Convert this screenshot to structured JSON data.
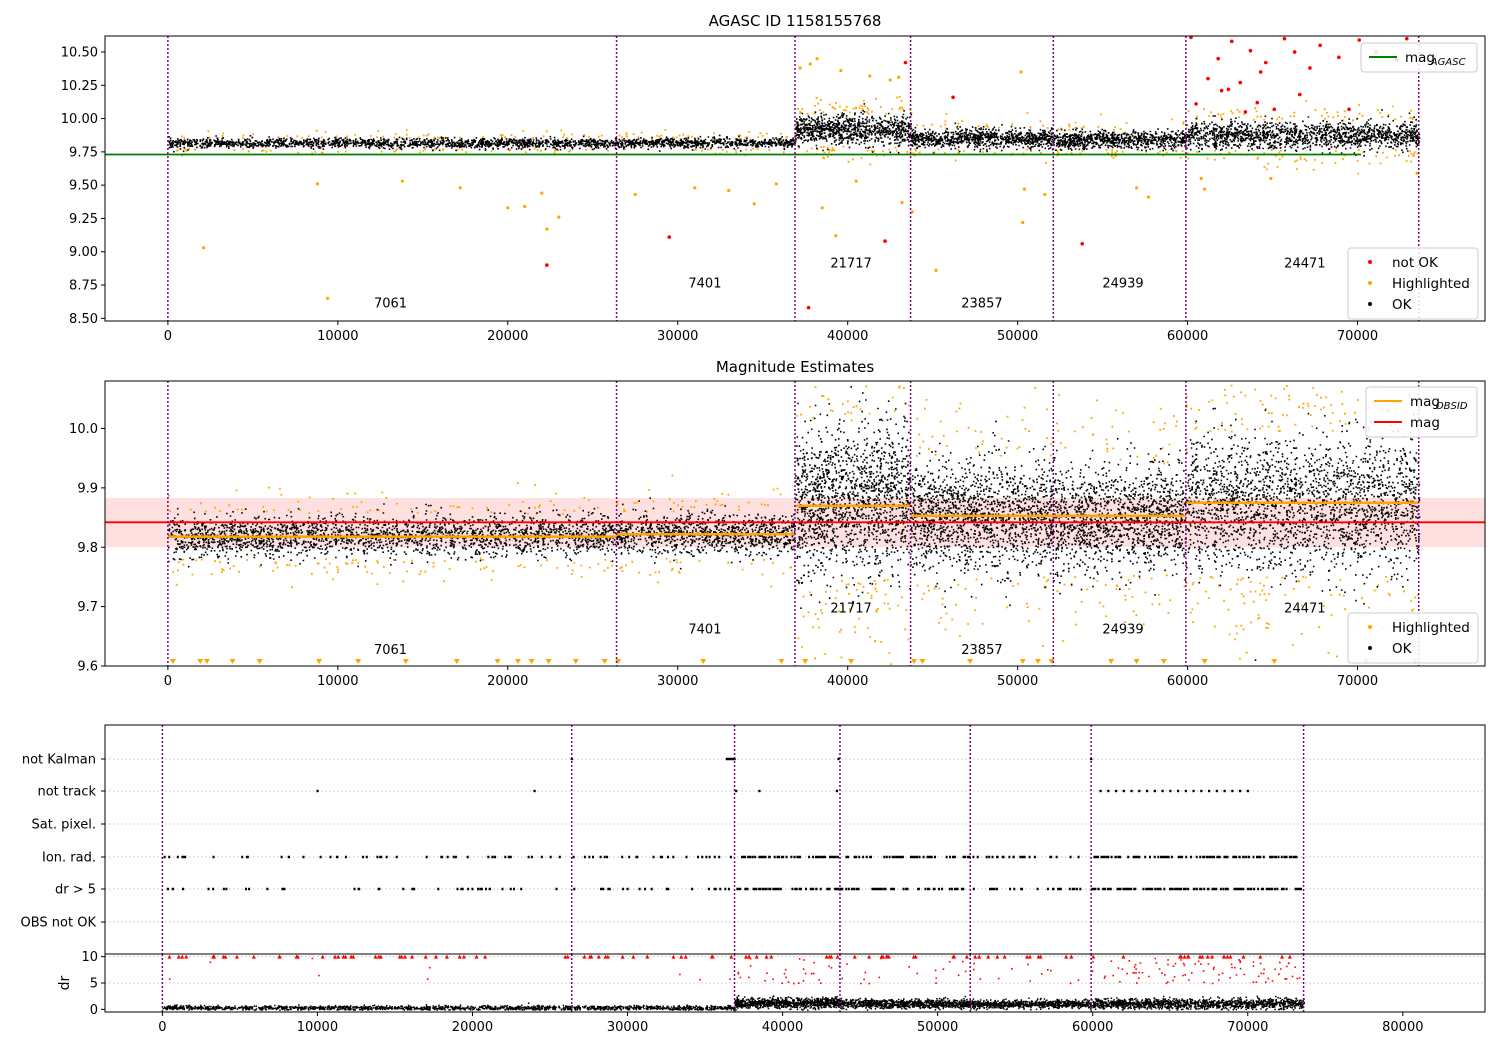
{
  "chart_data": [
    {
      "type": "scatter",
      "title": "AGASC ID 1158155768",
      "xlim": [
        -3700,
        77500
      ],
      "ylim": [
        8.48,
        10.62
      ],
      "xticks": [
        0,
        10000,
        20000,
        30000,
        40000,
        50000,
        60000,
        70000,
        80000
      ],
      "xtick_labels": [
        "0",
        "10000",
        "20000",
        "30000",
        "40000",
        "50000",
        "60000",
        "70000",
        "80000"
      ],
      "yticks": [
        8.5,
        8.75,
        9.0,
        9.25,
        9.5,
        9.75,
        10.0,
        10.25,
        10.5
      ],
      "ytick_labels": [
        "8.50",
        "8.75",
        "9.00",
        "9.25",
        "9.50",
        "9.75",
        "10.00",
        "10.25",
        "10.50"
      ],
      "mag_agasc": 9.73,
      "obsid_boundaries": [
        0,
        26400,
        36900,
        43700,
        52100,
        59900,
        73600
      ],
      "obsid_labels": [
        {
          "text": "7061",
          "x": 13100,
          "y": 8.58
        },
        {
          "text": "7401",
          "x": 31600,
          "y": 8.73
        },
        {
          "text": "21717",
          "x": 40200,
          "y": 8.88
        },
        {
          "text": "23857",
          "x": 47900,
          "y": 8.58
        },
        {
          "text": "24939",
          "x": 56200,
          "y": 8.73
        },
        {
          "text": "24471",
          "x": 66900,
          "y": 8.88
        }
      ],
      "segments": [
        {
          "x0": 0,
          "x1": 26400,
          "center": 9.82,
          "spread": 0.018,
          "ok_points": 1600,
          "hl_points": 120
        },
        {
          "x0": 26400,
          "x1": 36900,
          "center": 9.823,
          "spread": 0.018,
          "ok_points": 700,
          "hl_points": 60
        },
        {
          "x0": 36900,
          "x1": 43700,
          "center": 9.92,
          "spread": 0.055,
          "ok_points": 900,
          "hl_points": 90
        },
        {
          "x0": 43700,
          "x1": 52100,
          "center": 9.855,
          "spread": 0.035,
          "ok_points": 900,
          "hl_points": 50
        },
        {
          "x0": 52100,
          "x1": 59900,
          "center": 9.845,
          "spread": 0.033,
          "ok_points": 800,
          "hl_points": 50
        },
        {
          "x0": 59900,
          "x1": 73600,
          "center": 9.88,
          "spread": 0.05,
          "ok_points": 1400,
          "hl_points": 120
        }
      ],
      "highlighted_outliers": [
        {
          "x": 2100,
          "y": 9.03
        },
        {
          "x": 9400,
          "y": 8.65
        },
        {
          "x": 8800,
          "y": 9.51
        },
        {
          "x": 20000,
          "y": 9.33
        },
        {
          "x": 21000,
          "y": 9.34
        },
        {
          "x": 22000,
          "y": 9.44
        },
        {
          "x": 22300,
          "y": 9.17
        },
        {
          "x": 23000,
          "y": 9.26
        },
        {
          "x": 13800,
          "y": 9.53
        },
        {
          "x": 17200,
          "y": 9.48
        },
        {
          "x": 27500,
          "y": 9.43
        },
        {
          "x": 31000,
          "y": 9.48
        },
        {
          "x": 33000,
          "y": 9.46
        },
        {
          "x": 34500,
          "y": 9.36
        },
        {
          "x": 35800,
          "y": 9.51
        },
        {
          "x": 38500,
          "y": 9.33
        },
        {
          "x": 39300,
          "y": 9.12
        },
        {
          "x": 40500,
          "y": 9.53
        },
        {
          "x": 43200,
          "y": 9.37
        },
        {
          "x": 43800,
          "y": 9.3
        },
        {
          "x": 45200,
          "y": 8.86
        },
        {
          "x": 50300,
          "y": 9.22
        },
        {
          "x": 50400,
          "y": 9.47
        },
        {
          "x": 51600,
          "y": 9.43
        },
        {
          "x": 50200,
          "y": 10.35
        },
        {
          "x": 57000,
          "y": 9.48
        },
        {
          "x": 57700,
          "y": 9.41
        },
        {
          "x": 60800,
          "y": 9.55
        },
        {
          "x": 61000,
          "y": 9.47
        },
        {
          "x": 64900,
          "y": 9.55
        },
        {
          "x": 73500,
          "y": 9.59
        },
        {
          "x": 37200,
          "y": 10.38
        },
        {
          "x": 37800,
          "y": 10.41
        },
        {
          "x": 38200,
          "y": 10.45
        },
        {
          "x": 39600,
          "y": 10.36
        },
        {
          "x": 41300,
          "y": 10.32
        },
        {
          "x": 42500,
          "y": 10.29
        },
        {
          "x": 43000,
          "y": 10.31
        }
      ],
      "not_ok_points": [
        {
          "x": 29500,
          "y": 9.11
        },
        {
          "x": 22300,
          "y": 8.9
        },
        {
          "x": 37700,
          "y": 8.58
        },
        {
          "x": 42200,
          "y": 9.08
        },
        {
          "x": 53800,
          "y": 9.06
        },
        {
          "x": 43400,
          "y": 10.42
        },
        {
          "x": 46200,
          "y": 10.16
        },
        {
          "x": 60500,
          "y": 10.11
        },
        {
          "x": 61200,
          "y": 10.3
        },
        {
          "x": 61800,
          "y": 10.45
        },
        {
          "x": 62400,
          "y": 10.22
        },
        {
          "x": 62600,
          "y": 10.58
        },
        {
          "x": 63100,
          "y": 10.27
        },
        {
          "x": 63700,
          "y": 10.51
        },
        {
          "x": 64100,
          "y": 10.12
        },
        {
          "x": 64300,
          "y": 10.35
        },
        {
          "x": 64600,
          "y": 10.42
        },
        {
          "x": 65100,
          "y": 10.07
        },
        {
          "x": 65700,
          "y": 10.6
        },
        {
          "x": 66300,
          "y": 10.5
        },
        {
          "x": 66600,
          "y": 10.18
        },
        {
          "x": 67200,
          "y": 10.38
        },
        {
          "x": 67800,
          "y": 10.55
        },
        {
          "x": 68900,
          "y": 10.46
        },
        {
          "x": 70100,
          "y": 10.59
        },
        {
          "x": 71100,
          "y": 10.5
        },
        {
          "x": 72300,
          "y": 10.44
        },
        {
          "x": 72900,
          "y": 10.6
        },
        {
          "x": 60200,
          "y": 10.61
        },
        {
          "x": 62000,
          "y": 10.21
        },
        {
          "x": 63400,
          "y": 10.05
        },
        {
          "x": 69500,
          "y": 10.07
        }
      ],
      "legend_upper": {
        "placement": "upper right",
        "entries": [
          {
            "label": "mag",
            "sub": "AGASC",
            "color": "#008000"
          }
        ]
      },
      "legend_lower": {
        "placement": "lower right",
        "entries": [
          {
            "label": "not OK",
            "color": "#ff0000"
          },
          {
            "label": "Highlighted",
            "color": "#ffa500"
          },
          {
            "label": "OK",
            "color": "#000000"
          }
        ]
      }
    },
    {
      "type": "scatter",
      "title": "Magnitude Estimates",
      "xlim": [
        -3700,
        77500
      ],
      "ylim": [
        9.6,
        10.08
      ],
      "yticks": [
        9.6,
        9.7,
        9.8,
        9.9,
        10.0
      ],
      "ytick_labels": [
        "9.6",
        "9.7",
        "9.8",
        "9.9",
        "10.0"
      ],
      "mag": 9.842,
      "mag_band": [
        9.8,
        9.883
      ],
      "obsid_means": [
        {
          "x0": 0,
          "x1": 26400,
          "y": 9.818
        },
        {
          "x0": 26400,
          "x1": 36900,
          "y": 9.822
        },
        {
          "x0": 36900,
          "x1": 43700,
          "y": 9.87
        },
        {
          "x0": 43700,
          "x1": 52100,
          "y": 9.853
        },
        {
          "x0": 52100,
          "x1": 59900,
          "y": 9.853
        },
        {
          "x0": 59900,
          "x1": 73600,
          "y": 9.875
        }
      ],
      "obsid_labels": [
        {
          "text": "7061",
          "x": 13100,
          "y": 9.62
        },
        {
          "text": "7401",
          "x": 31600,
          "y": 9.655
        },
        {
          "text": "21717",
          "x": 40200,
          "y": 9.69
        },
        {
          "text": "23857",
          "x": 47900,
          "y": 9.62
        },
        {
          "text": "24939",
          "x": 56200,
          "y": 9.655
        },
        {
          "text": "24471",
          "x": 66900,
          "y": 9.69
        }
      ],
      "segments": [
        {
          "x0": 0,
          "x1": 26400,
          "center": 9.82,
          "spread": 0.017,
          "ok_points": 2200,
          "hl_points": 160
        },
        {
          "x0": 26400,
          "x1": 36900,
          "center": 9.823,
          "spread": 0.017,
          "ok_points": 1000,
          "hl_points": 70
        },
        {
          "x0": 36900,
          "x1": 43700,
          "center": 9.88,
          "spread": 0.06,
          "ok_points": 1500,
          "hl_points": 120
        },
        {
          "x0": 43700,
          "x1": 52100,
          "center": 9.853,
          "spread": 0.045,
          "ok_points": 1500,
          "hl_points": 80
        },
        {
          "x0": 52100,
          "x1": 59900,
          "center": 9.85,
          "spread": 0.042,
          "ok_points": 1300,
          "hl_points": 80
        },
        {
          "x0": 59900,
          "x1": 73600,
          "center": 9.875,
          "spread": 0.055,
          "ok_points": 2200,
          "hl_points": 200
        }
      ],
      "bottom_clip_triangles_x": [
        300,
        1900,
        2300,
        3800,
        5400,
        8900,
        11200,
        14000,
        17000,
        19400,
        20600,
        21400,
        22400,
        24000,
        25700,
        26500,
        31500,
        36100,
        37500,
        40200,
        43900,
        44400,
        47200,
        50300,
        51200,
        52000,
        55500,
        57000,
        58600,
        61000,
        65100,
        70500,
        73400
      ],
      "legend_upper": {
        "placement": "upper right",
        "entries": [
          {
            "label": "mag",
            "sub": "OBSID",
            "color": "#ffa500"
          },
          {
            "label": "mag",
            "sub": "",
            "color": "#ff0000"
          }
        ]
      },
      "legend_lower": {
        "placement": "lower right",
        "entries": [
          {
            "label": "Highlighted",
            "color": "#ffa500"
          },
          {
            "label": "OK",
            "color": "#000000"
          }
        ]
      }
    },
    {
      "type": "scatter",
      "title": "",
      "xlim": [
        -3700,
        85300
      ],
      "flag_labels": [
        "not Kalman",
        "not track",
        "Sat. pixel.",
        "Ion. rad.",
        "dr > 5",
        "OBS not OK"
      ],
      "flags": {
        "not Kalman": {
          "x": [
            26400,
            36400,
            36500,
            36600,
            36700,
            36800,
            36900,
            43600,
            59900
          ]
        },
        "not track": {
          "x": [
            10000,
            24000,
            37000,
            38500,
            43500,
            60500,
            61000,
            61500,
            62000,
            62500,
            63000,
            63500,
            64000,
            64500,
            65000,
            65500,
            66000,
            66500,
            67000,
            67500,
            68000,
            68500,
            69000,
            69500,
            70000
          ]
        },
        "Ion. rad.": {
          "bands": [
            [
              0,
              26400,
              48
            ],
            [
              26400,
              36900,
              24
            ],
            [
              36900,
              43700,
              50
            ],
            [
              43700,
              52100,
              45
            ],
            [
              52100,
              59900,
              25
            ],
            [
              59900,
              73600,
              120
            ]
          ]
        },
        "dr > 5": {
          "bands": [
            [
              0,
              26400,
              40
            ],
            [
              26400,
              36900,
              20
            ],
            [
              36900,
              43700,
              50
            ],
            [
              43700,
              52100,
              45
            ],
            [
              52100,
              59900,
              25
            ],
            [
              59900,
              73600,
              120
            ]
          ]
        }
      }
    },
    {
      "type": "scatter",
      "title": "",
      "xlim": [
        -3700,
        85300
      ],
      "ylim": [
        -0.5,
        10.5
      ],
      "ylabel": "dr",
      "yticks": [
        0,
        5,
        10
      ],
      "ytick_labels": [
        "0",
        "5",
        "10"
      ],
      "xticks": [
        0,
        10000,
        20000,
        30000,
        40000,
        50000,
        60000,
        70000,
        80000
      ],
      "xtick_labels": [
        "0",
        "10000",
        "20000",
        "30000",
        "40000",
        "50000",
        "60000",
        "70000",
        "80000"
      ],
      "segments": [
        {
          "x0": 0,
          "x1": 26400,
          "center": 0.4,
          "spread": 0.35,
          "ok_points": 1100,
          "red_points": 6
        },
        {
          "x0": 26400,
          "x1": 36900,
          "center": 0.4,
          "spread": 0.35,
          "ok_points": 450,
          "red_points": 3
        },
        {
          "x0": 36900,
          "x1": 43700,
          "center": 1.3,
          "spread": 0.8,
          "ok_points": 900,
          "red_points": 30
        },
        {
          "x0": 43700,
          "x1": 52100,
          "center": 1.2,
          "spread": 0.7,
          "ok_points": 900,
          "red_points": 18
        },
        {
          "x0": 52100,
          "x1": 59900,
          "center": 1.1,
          "spread": 0.6,
          "ok_points": 800,
          "red_points": 12
        },
        {
          "x0": 59900,
          "x1": 73600,
          "center": 1.2,
          "spread": 0.8,
          "ok_points": 1300,
          "red_points": 90
        }
      ]
    }
  ]
}
